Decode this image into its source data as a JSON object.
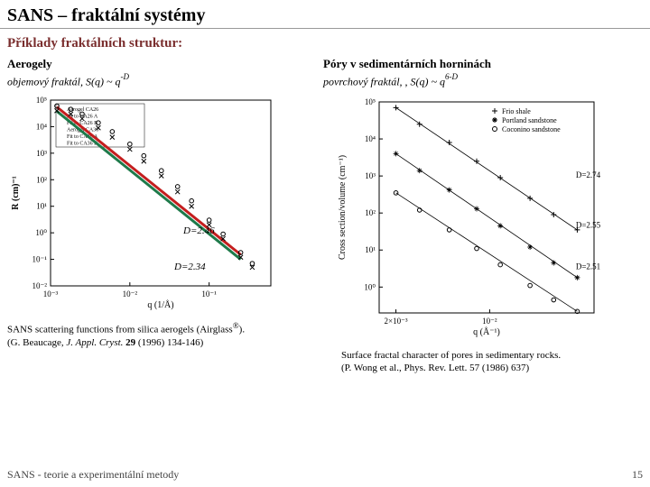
{
  "header": {
    "title": "SANS – fraktální systémy"
  },
  "subheader": "Příklady fraktálních struktur:",
  "left": {
    "title": "Aerogely",
    "schema_prefix": "objemový fraktál, S(q) ~ q",
    "schema_exp": "-D",
    "annot1": "D=2.46",
    "annot2": "D=2.34",
    "caption_line1_a": "SANS scattering functions from silica aerogels (Airglass",
    "caption_line1_b": ").",
    "caption_line2_a": "(G. Beaucage, ",
    "caption_line2_b": "J. Appl. Cryst.",
    "caption_line2_c": " ",
    "caption_line2_d": "29",
    "caption_line2_e": " (1996) 134-146)",
    "chart": {
      "type": "scatter-loglog",
      "xlabel": "q (1/Å)",
      "ylabel": "R (cm)⁻¹",
      "xlim": [
        0.001,
        0.6
      ],
      "ylim": [
        0.01,
        100000
      ],
      "xticks": [
        "10⁻³",
        "10⁻²",
        "10⁻¹"
      ],
      "yticks": [
        "10⁻²",
        "10⁻¹",
        "10⁰",
        "10¹",
        "10²",
        "10³",
        "10⁴",
        "10⁵"
      ],
      "legend": [
        "Aerogel CA26",
        "Fit to CA26 A",
        "Fit to CA26 B",
        "Aerogel CA36",
        "Fit to CA36 A",
        "Fit to CA36 B"
      ],
      "series": [
        {
          "name": "CA26",
          "marker": "x",
          "color": "#000000",
          "points_qR": [
            [
              0.0012,
              40000
            ],
            [
              0.0018,
              30000
            ],
            [
              0.0025,
              20000
            ],
            [
              0.004,
              9000
            ],
            [
              0.006,
              4000
            ],
            [
              0.01,
              1400
            ],
            [
              0.015,
              500
            ],
            [
              0.025,
              140
            ],
            [
              0.04,
              35
            ],
            [
              0.06,
              10
            ],
            [
              0.1,
              2
            ],
            [
              0.15,
              0.6
            ],
            [
              0.25,
              0.12
            ],
            [
              0.35,
              0.05
            ]
          ]
        },
        {
          "name": "CA36",
          "marker": "o",
          "color": "#000000",
          "points_qR": [
            [
              0.0012,
              60000
            ],
            [
              0.0018,
              45000
            ],
            [
              0.0025,
              30000
            ],
            [
              0.004,
              14000
            ],
            [
              0.006,
              6500
            ],
            [
              0.01,
              2200
            ],
            [
              0.015,
              800
            ],
            [
              0.025,
              220
            ],
            [
              0.04,
              55
            ],
            [
              0.06,
              16
            ],
            [
              0.1,
              3
            ],
            [
              0.15,
              0.9
            ],
            [
              0.25,
              0.18
            ],
            [
              0.35,
              0.07
            ]
          ]
        }
      ],
      "fit_lines": [
        {
          "color": "#c41e1e",
          "width": 3,
          "q0": 0.0012,
          "R0": 55000,
          "q1": 0.25,
          "R1": 0.15
        },
        {
          "color": "#1e7a4a",
          "width": 3,
          "q0": 0.0012,
          "R0": 38000,
          "q1": 0.25,
          "R1": 0.1
        }
      ],
      "background_color": "#ffffff",
      "axis_color": "#000000",
      "tick_fontsize": 9,
      "label_fontsize": 10
    }
  },
  "right": {
    "title": "Póry v sedimentárních horninách",
    "schema_prefix": "povrchový fraktál, , S(q) ~ q",
    "schema_exp": "6-D",
    "caption_line1": "Surface fractal character of pores in sedimentary rocks.",
    "caption_line2_a": "(P. Wong et al., ",
    "caption_line2_b": "Phys. Rev. Lett.",
    "caption_line2_c": " ",
    "caption_line2_d": "57",
    "caption_line2_e": " (1986) 637)",
    "chart": {
      "type": "scatter-loglog",
      "xlabel": "q (Å⁻¹)",
      "ylabel": "Cross section/volume (cm⁻¹)",
      "xlim": [
        0.0015,
        0.06
      ],
      "ylim": [
        0.2,
        100000
      ],
      "xticks_labels": [
        "2×10⁻³",
        "10⁻²"
      ],
      "yticks": [
        "10⁰",
        "10¹",
        "10²",
        "10³",
        "10⁴",
        "10⁵"
      ],
      "legend": [
        "Frio shale",
        "Portland sandstone",
        "Coconino sandstone"
      ],
      "D_labels": [
        {
          "text": "D=2.74",
          "q": 0.04,
          "y": 900
        },
        {
          "text": "D=2.55",
          "q": 0.04,
          "y": 40
        },
        {
          "text": "D=2.51",
          "q": 0.04,
          "y": 3
        }
      ],
      "series": [
        {
          "name": "Frio shale",
          "marker": "+",
          "color": "#000",
          "points": [
            [
              0.002,
              70000
            ],
            [
              0.003,
              25000
            ],
            [
              0.005,
              8000
            ],
            [
              0.008,
              2500
            ],
            [
              0.012,
              900
            ],
            [
              0.02,
              250
            ],
            [
              0.03,
              90
            ],
            [
              0.045,
              35
            ]
          ],
          "fit_slope": -3.26
        },
        {
          "name": "Portland sandstone",
          "marker": "*",
          "color": "#000",
          "points": [
            [
              0.002,
              4000
            ],
            [
              0.003,
              1400
            ],
            [
              0.005,
              420
            ],
            [
              0.008,
              130
            ],
            [
              0.012,
              45
            ],
            [
              0.02,
              12
            ],
            [
              0.03,
              4.5
            ],
            [
              0.045,
              1.8
            ]
          ],
          "fit_slope": -3.45
        },
        {
          "name": "Coconino sandstone",
          "marker": "o",
          "color": "#000",
          "points": [
            [
              0.002,
              350
            ],
            [
              0.003,
              120
            ],
            [
              0.005,
              35
            ],
            [
              0.008,
              11
            ],
            [
              0.012,
              4
            ],
            [
              0.02,
              1.1
            ],
            [
              0.03,
              0.45
            ],
            [
              0.045,
              0.22
            ]
          ],
          "fit_slope": -3.49
        }
      ],
      "background_color": "#ffffff",
      "axis_color": "#000000",
      "tick_fontsize": 9,
      "label_fontsize": 10
    }
  },
  "footer": {
    "left": "SANS - teorie a experimentální metody",
    "page": "15"
  }
}
